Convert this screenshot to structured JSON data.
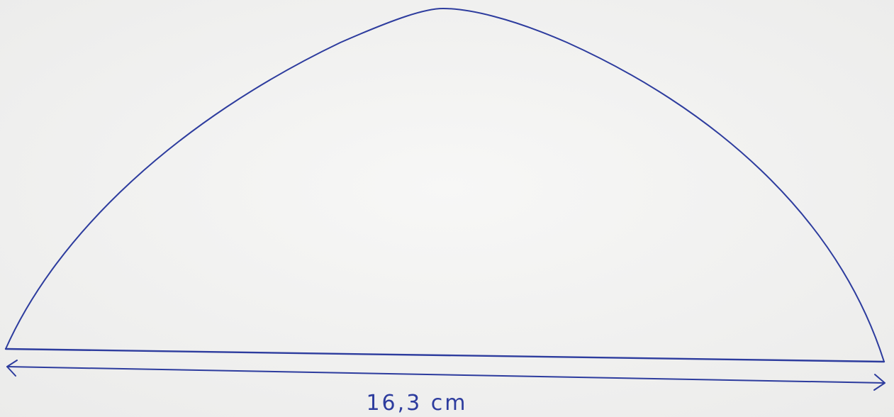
{
  "dimension": {
    "label": "16,3 cm"
  }
}
